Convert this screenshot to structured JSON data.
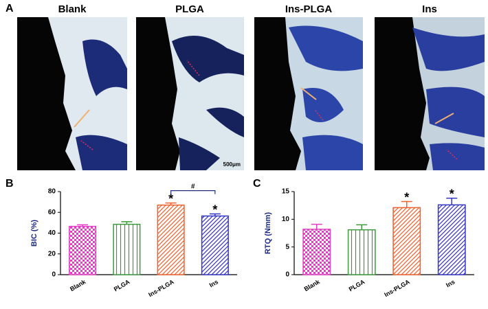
{
  "panel_a": {
    "label": "A",
    "titles": [
      "Blank",
      "PLGA",
      "Ins-PLGA",
      "Ins"
    ],
    "scale_bar": "500μm"
  },
  "chart_data": [
    {
      "type": "bar",
      "panel_label": "B",
      "ylabel": "BIC (%)",
      "categories": [
        "Blank",
        "PLGA",
        "Ins-PLGA",
        "Ins"
      ],
      "values": [
        46.5,
        48.5,
        67,
        56.5
      ],
      "errors": [
        1.5,
        2.5,
        2,
        2
      ],
      "colors": [
        "#e23fc4",
        "#3c9a3c",
        "#f0602c",
        "#3434c4"
      ],
      "patterns": [
        "checker",
        "vertical",
        "diagonal",
        "diagonal"
      ],
      "significance": [
        null,
        null,
        "*",
        "*"
      ],
      "comparison_label": "#",
      "ylim": [
        0,
        80
      ],
      "yticks": [
        0,
        20,
        40,
        60,
        80
      ]
    },
    {
      "type": "bar",
      "panel_label": "C",
      "ylabel": "RTQ (Nmm)",
      "categories": [
        "Blank",
        "PLGA",
        "Ins-PLGA",
        "Ins"
      ],
      "values": [
        8.2,
        8.1,
        12.1,
        12.6
      ],
      "errors": [
        0.9,
        0.9,
        1.1,
        1.2
      ],
      "colors": [
        "#e23fc4",
        "#3c9a3c",
        "#f0602c",
        "#3434c4"
      ],
      "patterns": [
        "checker",
        "vertical",
        "diagonal",
        "diagonal"
      ],
      "significance": [
        null,
        null,
        "*",
        "*"
      ],
      "ylim": [
        0,
        15
      ],
      "yticks": [
        0,
        5,
        10,
        15
      ]
    }
  ]
}
